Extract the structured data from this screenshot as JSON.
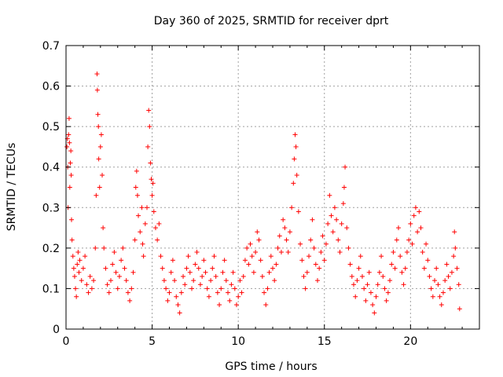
{
  "chart_data": {
    "type": "scatter",
    "title": "Day 360 of 2025, SRMTID for receiver dprt",
    "xlabel": "GPS time / hours",
    "ylabel": "SRMTID / TECUs",
    "xlim": [
      0,
      24
    ],
    "ylim": [
      0,
      0.7
    ],
    "x_ticks": [
      0,
      5,
      10,
      15,
      20
    ],
    "x_tick_labels": [
      "0",
      "5",
      "10",
      "15",
      "20"
    ],
    "y_ticks": [
      0,
      0.1,
      0.2,
      0.3,
      0.4,
      0.5,
      0.6,
      0.7
    ],
    "y_tick_labels": [
      "0",
      "0.1",
      "0.2",
      "0.3",
      "0.4",
      "0.5",
      "0.6",
      "0.7"
    ],
    "grid": true,
    "marker": "plus",
    "color": "#ff0000",
    "series": [
      {
        "name": "SRMTID",
        "points": [
          [
            0.05,
            0.45
          ],
          [
            0.08,
            0.47
          ],
          [
            0.1,
            0.4
          ],
          [
            0.12,
            0.3
          ],
          [
            0.15,
            0.48
          ],
          [
            0.18,
            0.52
          ],
          [
            0.2,
            0.46
          ],
          [
            0.22,
            0.35
          ],
          [
            0.25,
            0.41
          ],
          [
            0.28,
            0.44
          ],
          [
            0.3,
            0.38
          ],
          [
            0.32,
            0.27
          ],
          [
            0.35,
            0.22
          ],
          [
            0.4,
            0.18
          ],
          [
            0.45,
            0.15
          ],
          [
            0.5,
            0.13
          ],
          [
            0.55,
            0.1
          ],
          [
            0.6,
            0.08
          ],
          [
            0.65,
            0.16
          ],
          [
            0.7,
            0.19
          ],
          [
            0.75,
            0.14
          ],
          [
            0.8,
            0.17
          ],
          [
            0.9,
            0.12
          ],
          [
            1.0,
            0.15
          ],
          [
            1.1,
            0.18
          ],
          [
            1.2,
            0.11
          ],
          [
            1.3,
            0.09
          ],
          [
            1.4,
            0.13
          ],
          [
            1.5,
            0.1
          ],
          [
            1.6,
            0.12
          ],
          [
            1.7,
            0.2
          ],
          [
            1.75,
            0.33
          ],
          [
            1.8,
            0.63
          ],
          [
            1.82,
            0.59
          ],
          [
            1.85,
            0.53
          ],
          [
            1.88,
            0.5
          ],
          [
            1.9,
            0.42
          ],
          [
            1.95,
            0.35
          ],
          [
            2.0,
            0.45
          ],
          [
            2.05,
            0.48
          ],
          [
            2.1,
            0.38
          ],
          [
            2.15,
            0.25
          ],
          [
            2.2,
            0.2
          ],
          [
            2.3,
            0.15
          ],
          [
            2.4,
            0.11
          ],
          [
            2.5,
            0.09
          ],
          [
            2.6,
            0.12
          ],
          [
            2.7,
            0.16
          ],
          [
            2.8,
            0.19
          ],
          [
            2.9,
            0.14
          ],
          [
            3.0,
            0.1
          ],
          [
            3.1,
            0.13
          ],
          [
            3.2,
            0.17
          ],
          [
            3.3,
            0.2
          ],
          [
            3.4,
            0.15
          ],
          [
            3.5,
            0.12
          ],
          [
            3.6,
            0.09
          ],
          [
            3.7,
            0.07
          ],
          [
            3.8,
            0.1
          ],
          [
            3.9,
            0.14
          ],
          [
            4.0,
            0.22
          ],
          [
            4.05,
            0.35
          ],
          [
            4.1,
            0.39
          ],
          [
            4.15,
            0.33
          ],
          [
            4.2,
            0.28
          ],
          [
            4.3,
            0.24
          ],
          [
            4.4,
            0.3
          ],
          [
            4.45,
            0.21
          ],
          [
            4.5,
            0.18
          ],
          [
            4.6,
            0.26
          ],
          [
            4.7,
            0.3
          ],
          [
            4.75,
            0.45
          ],
          [
            4.8,
            0.54
          ],
          [
            4.85,
            0.5
          ],
          [
            4.9,
            0.41
          ],
          [
            4.95,
            0.37
          ],
          [
            5.0,
            0.33
          ],
          [
            5.05,
            0.36
          ],
          [
            5.1,
            0.29
          ],
          [
            5.2,
            0.25
          ],
          [
            5.3,
            0.22
          ],
          [
            5.4,
            0.26
          ],
          [
            5.5,
            0.18
          ],
          [
            5.6,
            0.15
          ],
          [
            5.7,
            0.12
          ],
          [
            5.8,
            0.1
          ],
          [
            5.9,
            0.07
          ],
          [
            6.0,
            0.09
          ],
          [
            6.1,
            0.14
          ],
          [
            6.2,
            0.17
          ],
          [
            6.3,
            0.12
          ],
          [
            6.4,
            0.08
          ],
          [
            6.5,
            0.06
          ],
          [
            6.6,
            0.04
          ],
          [
            6.7,
            0.09
          ],
          [
            6.8,
            0.13
          ],
          [
            6.9,
            0.11
          ],
          [
            7.0,
            0.15
          ],
          [
            7.1,
            0.18
          ],
          [
            7.2,
            0.14
          ],
          [
            7.3,
            0.1
          ],
          [
            7.4,
            0.12
          ],
          [
            7.5,
            0.16
          ],
          [
            7.6,
            0.19
          ],
          [
            7.7,
            0.15
          ],
          [
            7.8,
            0.11
          ],
          [
            7.9,
            0.13
          ],
          [
            8.0,
            0.17
          ],
          [
            8.1,
            0.14
          ],
          [
            8.2,
            0.1
          ],
          [
            8.3,
            0.08
          ],
          [
            8.4,
            0.12
          ],
          [
            8.5,
            0.15
          ],
          [
            8.6,
            0.18
          ],
          [
            8.7,
            0.13
          ],
          [
            8.8,
            0.09
          ],
          [
            8.9,
            0.06
          ],
          [
            9.0,
            0.1
          ],
          [
            9.1,
            0.14
          ],
          [
            9.2,
            0.17
          ],
          [
            9.3,
            0.12
          ],
          [
            9.4,
            0.09
          ],
          [
            9.5,
            0.07
          ],
          [
            9.6,
            0.11
          ],
          [
            9.7,
            0.14
          ],
          [
            9.8,
            0.1
          ],
          [
            9.9,
            0.06
          ],
          [
            10.0,
            0.08
          ],
          [
            10.1,
            0.12
          ],
          [
            10.2,
            0.09
          ],
          [
            10.3,
            0.13
          ],
          [
            10.4,
            0.17
          ],
          [
            10.5,
            0.2
          ],
          [
            10.6,
            0.16
          ],
          [
            10.7,
            0.21
          ],
          [
            10.8,
            0.18
          ],
          [
            10.9,
            0.14
          ],
          [
            11.0,
            0.19
          ],
          [
            11.1,
            0.24
          ],
          [
            11.2,
            0.22
          ],
          [
            11.3,
            0.17
          ],
          [
            11.4,
            0.13
          ],
          [
            11.5,
            0.09
          ],
          [
            11.6,
            0.06
          ],
          [
            11.7,
            0.1
          ],
          [
            11.8,
            0.14
          ],
          [
            11.9,
            0.18
          ],
          [
            12.0,
            0.15
          ],
          [
            12.1,
            0.12
          ],
          [
            12.2,
            0.16
          ],
          [
            12.3,
            0.2
          ],
          [
            12.4,
            0.23
          ],
          [
            12.5,
            0.19
          ],
          [
            12.6,
            0.27
          ],
          [
            12.7,
            0.25
          ],
          [
            12.8,
            0.22
          ],
          [
            12.9,
            0.19
          ],
          [
            13.0,
            0.24
          ],
          [
            13.1,
            0.3
          ],
          [
            13.2,
            0.36
          ],
          [
            13.25,
            0.42
          ],
          [
            13.3,
            0.48
          ],
          [
            13.35,
            0.45
          ],
          [
            13.4,
            0.38
          ],
          [
            13.5,
            0.29
          ],
          [
            13.6,
            0.21
          ],
          [
            13.7,
            0.17
          ],
          [
            13.8,
            0.13
          ],
          [
            13.9,
            0.1
          ],
          [
            14.0,
            0.14
          ],
          [
            14.1,
            0.18
          ],
          [
            14.2,
            0.22
          ],
          [
            14.3,
            0.27
          ],
          [
            14.4,
            0.2
          ],
          [
            14.5,
            0.16
          ],
          [
            14.6,
            0.12
          ],
          [
            14.7,
            0.15
          ],
          [
            14.8,
            0.19
          ],
          [
            14.9,
            0.23
          ],
          [
            15.0,
            0.17
          ],
          [
            15.1,
            0.21
          ],
          [
            15.2,
            0.26
          ],
          [
            15.3,
            0.33
          ],
          [
            15.4,
            0.28
          ],
          [
            15.5,
            0.24
          ],
          [
            15.6,
            0.3
          ],
          [
            15.7,
            0.27
          ],
          [
            15.8,
            0.22
          ],
          [
            15.9,
            0.19
          ],
          [
            16.0,
            0.26
          ],
          [
            16.1,
            0.31
          ],
          [
            16.15,
            0.35
          ],
          [
            16.2,
            0.4
          ],
          [
            16.3,
            0.25
          ],
          [
            16.4,
            0.2
          ],
          [
            16.5,
            0.16
          ],
          [
            16.6,
            0.13
          ],
          [
            16.7,
            0.11
          ],
          [
            16.8,
            0.08
          ],
          [
            16.9,
            0.12
          ],
          [
            17.0,
            0.15
          ],
          [
            17.1,
            0.18
          ],
          [
            17.2,
            0.13
          ],
          [
            17.3,
            0.1
          ],
          [
            17.4,
            0.07
          ],
          [
            17.5,
            0.11
          ],
          [
            17.6,
            0.14
          ],
          [
            17.7,
            0.09
          ],
          [
            17.8,
            0.06
          ],
          [
            17.9,
            0.04
          ],
          [
            18.0,
            0.08
          ],
          [
            18.1,
            0.11
          ],
          [
            18.2,
            0.14
          ],
          [
            18.3,
            0.18
          ],
          [
            18.4,
            0.13
          ],
          [
            18.5,
            0.1
          ],
          [
            18.6,
            0.07
          ],
          [
            18.7,
            0.09
          ],
          [
            18.8,
            0.12
          ],
          [
            18.9,
            0.16
          ],
          [
            19.0,
            0.19
          ],
          [
            19.1,
            0.15
          ],
          [
            19.2,
            0.22
          ],
          [
            19.3,
            0.25
          ],
          [
            19.4,
            0.18
          ],
          [
            19.5,
            0.14
          ],
          [
            19.6,
            0.11
          ],
          [
            19.7,
            0.15
          ],
          [
            19.8,
            0.19
          ],
          [
            19.9,
            0.22
          ],
          [
            20.0,
            0.26
          ],
          [
            20.1,
            0.21
          ],
          [
            20.2,
            0.28
          ],
          [
            20.3,
            0.3
          ],
          [
            20.4,
            0.24
          ],
          [
            20.5,
            0.29
          ],
          [
            20.6,
            0.25
          ],
          [
            20.7,
            0.19
          ],
          [
            20.8,
            0.15
          ],
          [
            20.9,
            0.21
          ],
          [
            21.0,
            0.17
          ],
          [
            21.1,
            0.13
          ],
          [
            21.2,
            0.1
          ],
          [
            21.3,
            0.08
          ],
          [
            21.4,
            0.12
          ],
          [
            21.5,
            0.15
          ],
          [
            21.6,
            0.11
          ],
          [
            21.7,
            0.08
          ],
          [
            21.8,
            0.06
          ],
          [
            21.9,
            0.09
          ],
          [
            22.0,
            0.12
          ],
          [
            22.1,
            0.16
          ],
          [
            22.2,
            0.13
          ],
          [
            22.3,
            0.1
          ],
          [
            22.4,
            0.14
          ],
          [
            22.5,
            0.18
          ],
          [
            22.55,
            0.24
          ],
          [
            22.6,
            0.2
          ],
          [
            22.7,
            0.15
          ],
          [
            22.8,
            0.11
          ],
          [
            22.85,
            0.05
          ]
        ]
      }
    ]
  }
}
